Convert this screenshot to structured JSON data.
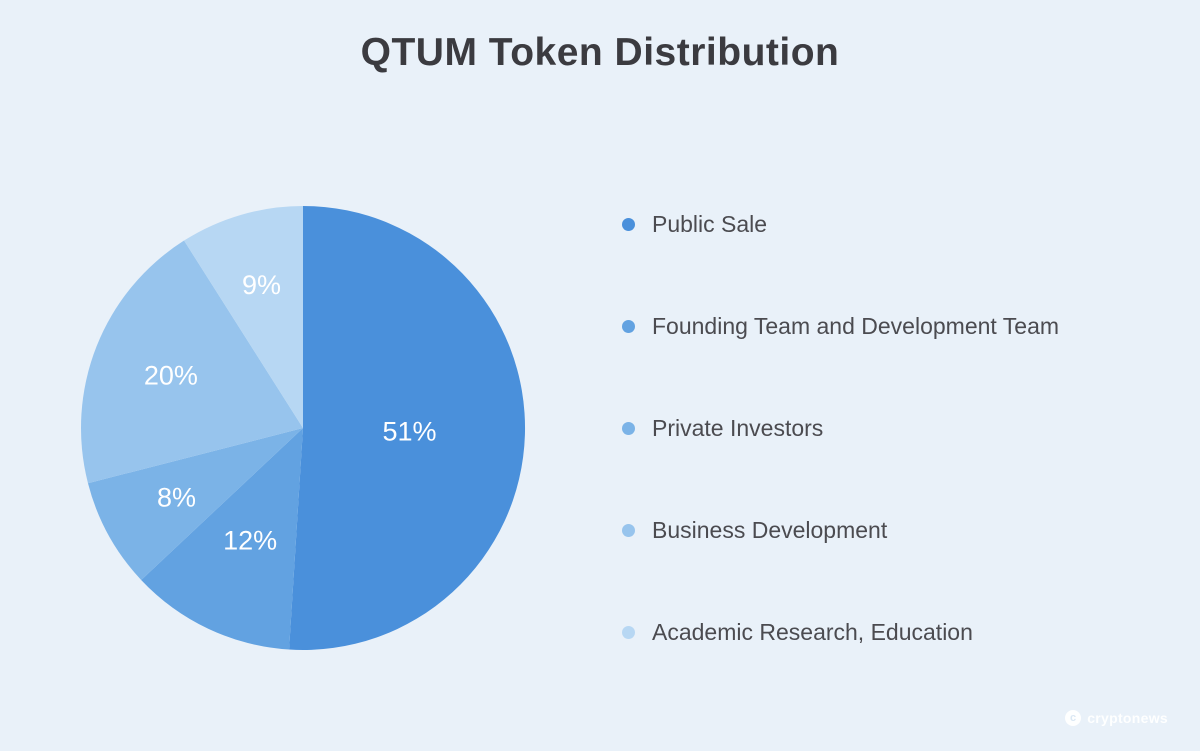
{
  "page": {
    "background_color": "#e9f1f9"
  },
  "chart_data": {
    "type": "pie",
    "title": "QTUM Token Distribution",
    "labels": [
      "Public Sale",
      "Founding Team and Development Team",
      "Private Investors",
      "Business Development",
      "Academic Research, Education"
    ],
    "values": [
      51,
      12,
      8,
      20,
      9
    ],
    "data_labels": [
      "51%",
      "12%",
      "8%",
      "20%",
      "9%"
    ],
    "unit": "%",
    "colors": [
      "#4a90db",
      "#62a2e1",
      "#7bb3e7",
      "#97c4ed",
      "#b7d7f3"
    ],
    "start_angle_deg": 0,
    "direction": "clockwise",
    "legend_position": "right",
    "label_radius_factors": [
      0.48,
      0.56,
      0.65,
      0.64,
      0.67
    ],
    "label_color": "#ffffff"
  },
  "watermark": {
    "text": "cryptonews",
    "icon": "cryptonews-logo"
  }
}
